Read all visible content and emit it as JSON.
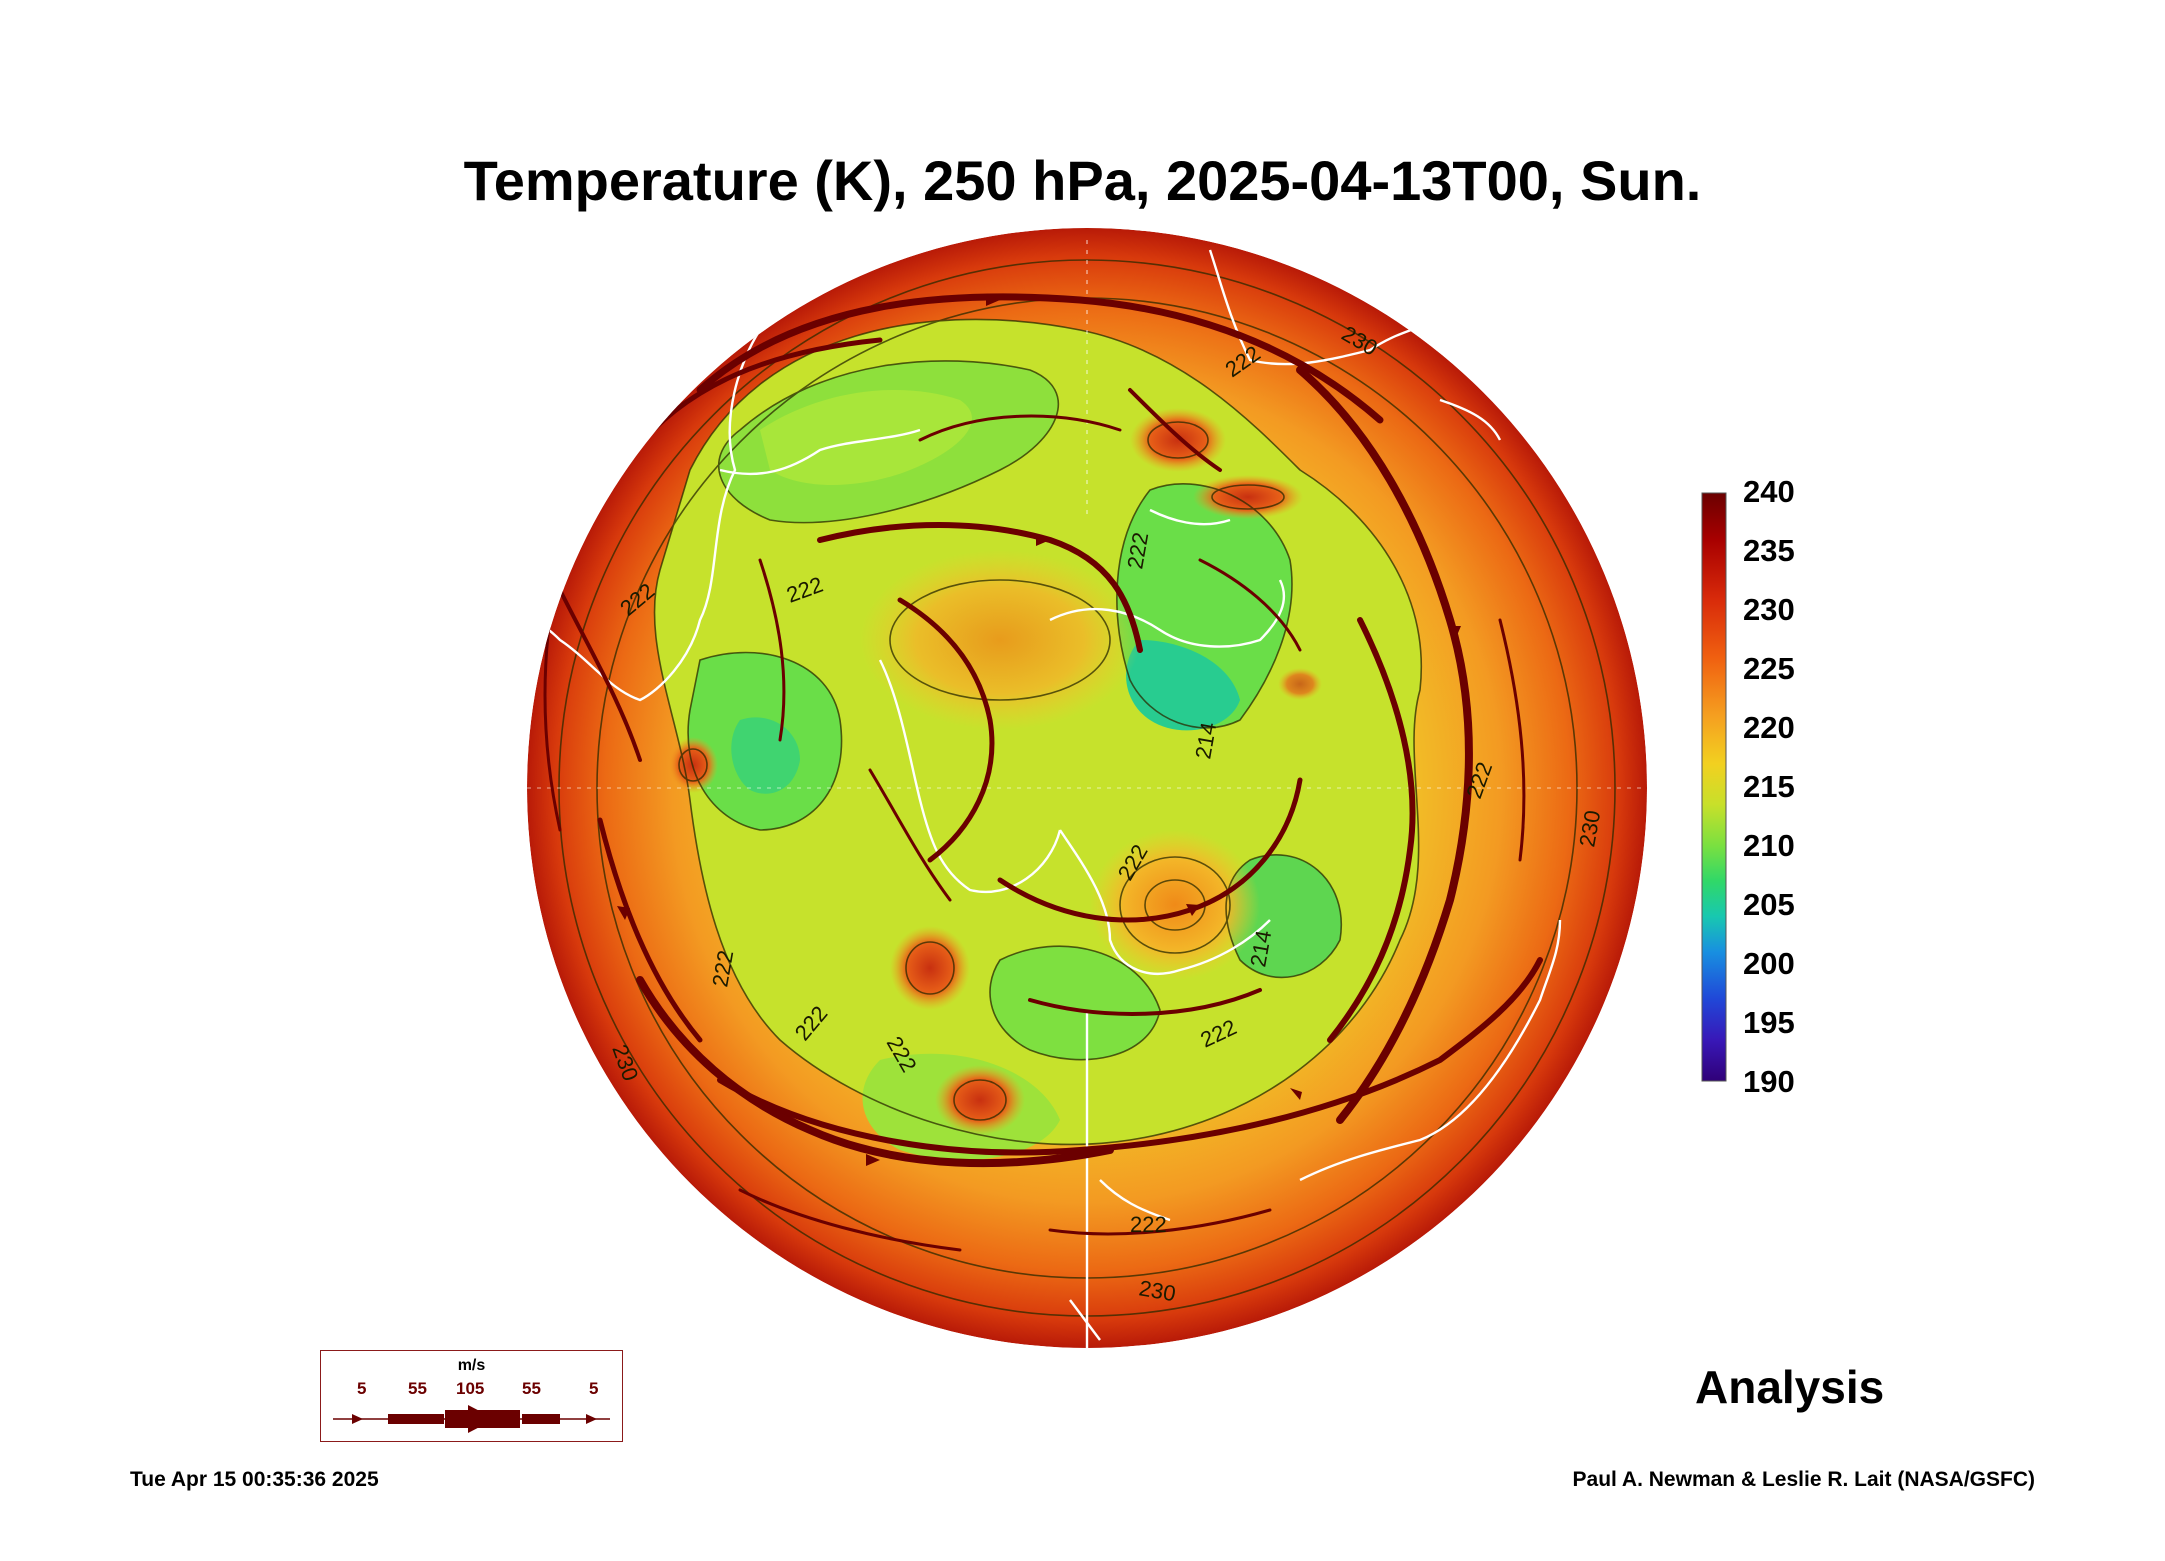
{
  "title": "Temperature (K), 250 hPa, 2025-04-13T00, Sun.",
  "colorbar": {
    "ticks": [
      "240",
      "235",
      "230",
      "225",
      "220",
      "215",
      "210",
      "205",
      "200",
      "195",
      "190"
    ],
    "colors": [
      "#6b0000",
      "#a80000",
      "#d82a0a",
      "#f06010",
      "#f5a020",
      "#f2d020",
      "#c8e02a",
      "#7ae040",
      "#30d868",
      "#18c8b0",
      "#1890e0",
      "#2048d8",
      "#3818b8",
      "#300078"
    ]
  },
  "contour_labels": [
    "230",
    "222",
    "222",
    "222",
    "222",
    "222",
    "222",
    "222",
    "222",
    "222",
    "222",
    "230",
    "230",
    "230",
    "222",
    "214",
    "214"
  ],
  "wind_legend": {
    "unit": "m/s",
    "scale": [
      "5",
      "55",
      "105",
      "55",
      "5"
    ]
  },
  "label": "Analysis",
  "timestamp": "Tue Apr 15 00:35:36 2025",
  "credit": "Paul A. Newman & Leslie R. Lait (NASA/GSFC)"
}
